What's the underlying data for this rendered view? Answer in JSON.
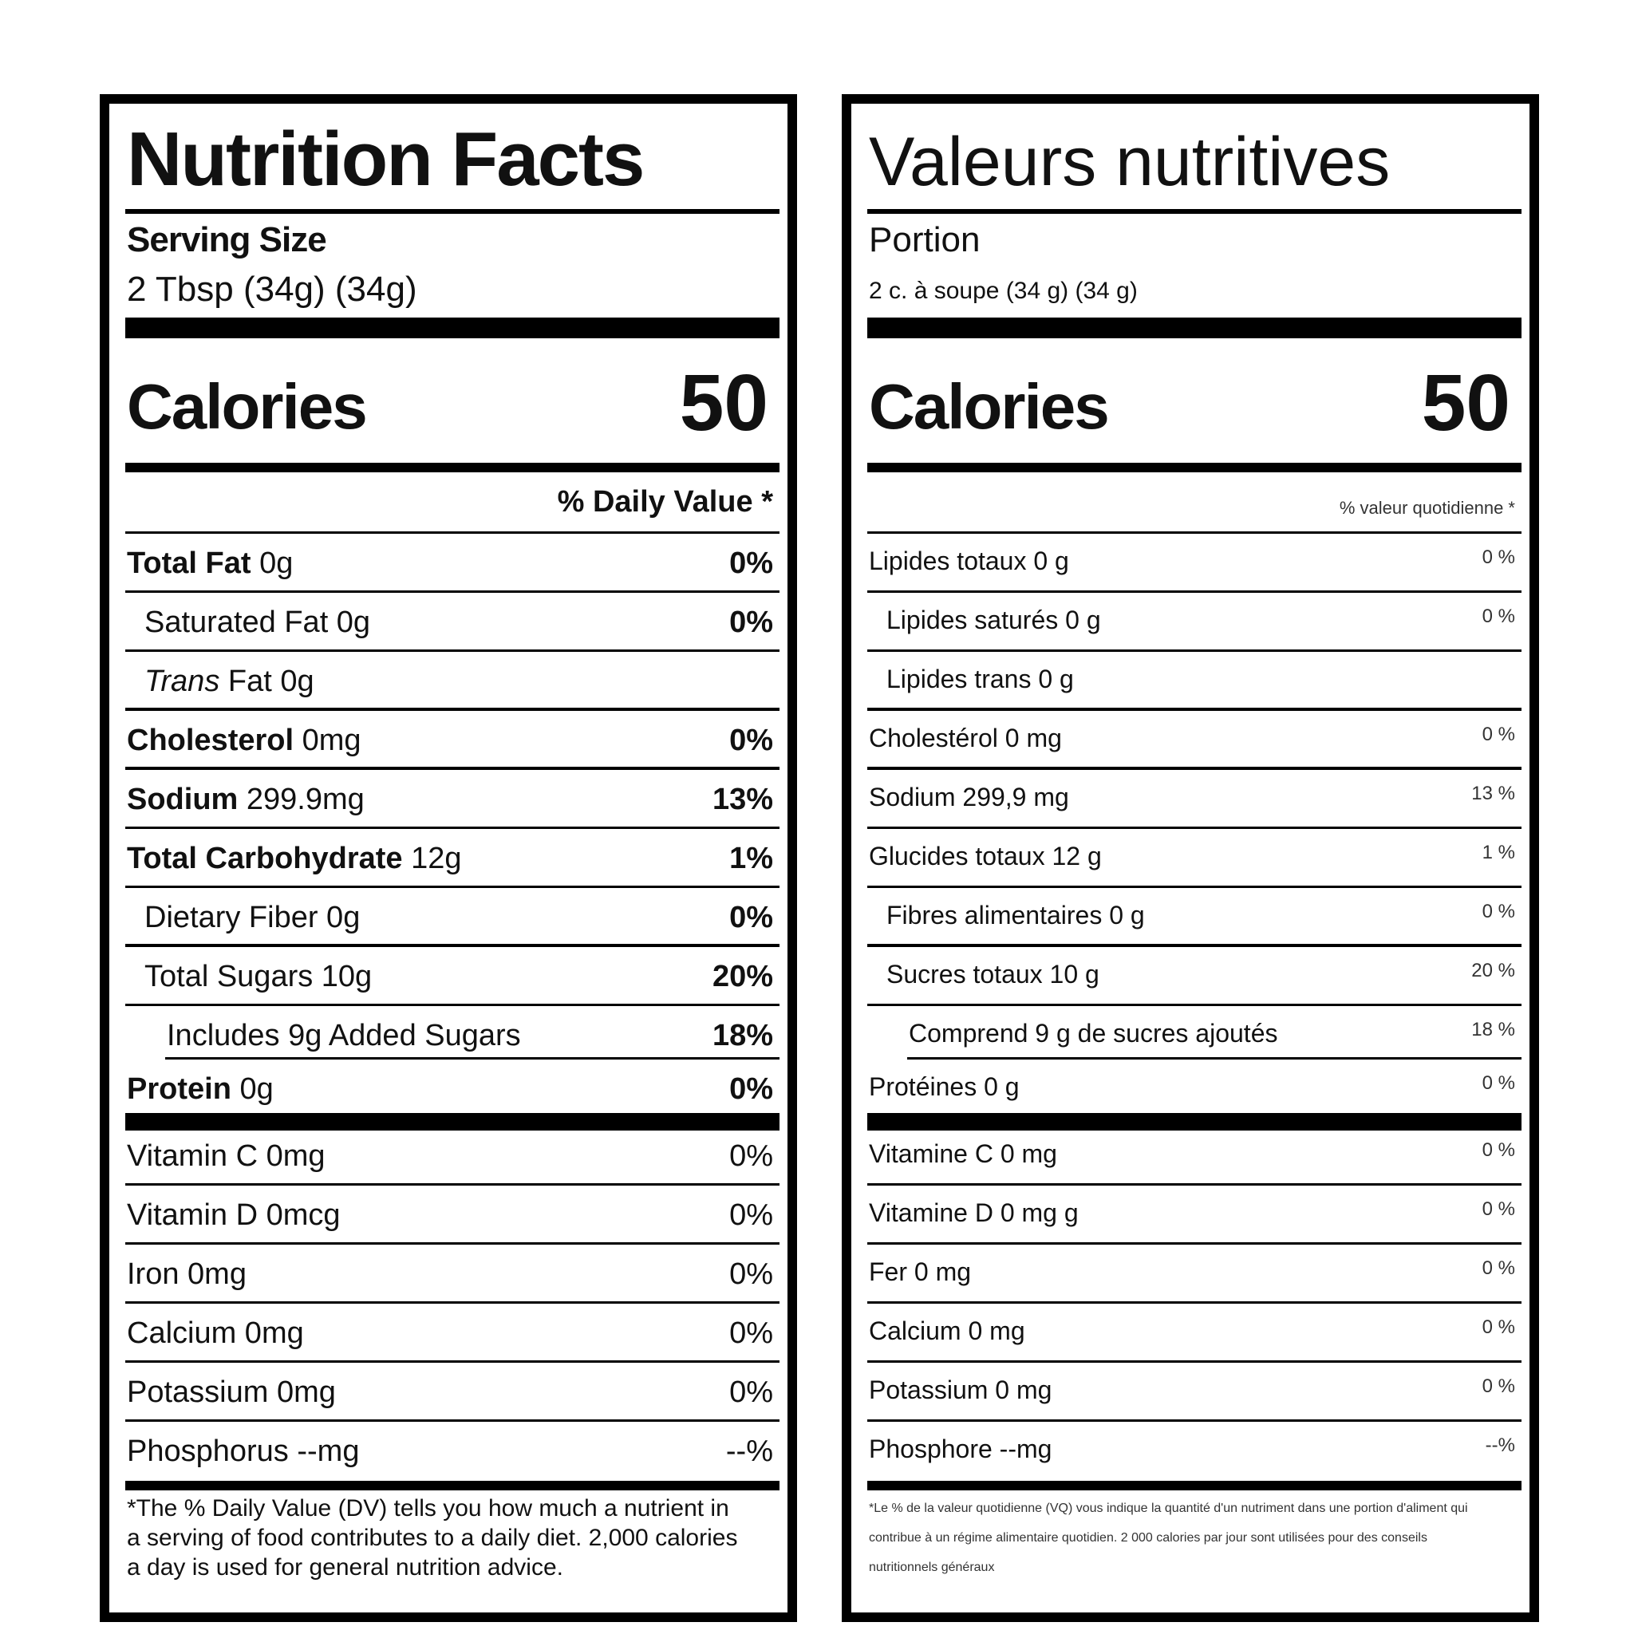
{
  "english": {
    "title": "Nutrition Facts",
    "serving_label": "Serving Size",
    "serving_size": "2 Tbsp (34g) (34g)",
    "calories_label": "Calories",
    "calories_value": "50",
    "dv_header": "% Daily Value *",
    "rows": [
      {
        "bold": "Total Fat",
        "text": " 0g",
        "pct": "0%"
      },
      {
        "text": "Saturated Fat 0g",
        "pct": "0%"
      },
      {
        "italic": "Trans",
        "text": " Fat 0g",
        "pct": ""
      },
      {
        "bold": "Cholesterol",
        "text": " 0mg",
        "pct": "0%"
      },
      {
        "bold": "Sodium",
        "text": " 299.9mg",
        "pct": "13%"
      },
      {
        "bold": "Total Carbohydrate",
        "text": " 12g",
        "pct": "1%"
      },
      {
        "text": "Dietary Fiber 0g",
        "pct": "0%"
      },
      {
        "text": "Total Sugars 10g",
        "pct": "20%"
      },
      {
        "text": "Includes 9g Added Sugars",
        "pct": "18%"
      },
      {
        "bold": "Protein",
        "text": " 0g",
        "pct": "0%"
      },
      {
        "text": "Vitamin C 0mg",
        "pct": "0%"
      },
      {
        "text": "Vitamin D 0mcg",
        "pct": "0%"
      },
      {
        "text": "Iron 0mg",
        "pct": "0%"
      },
      {
        "text": "Calcium 0mg",
        "pct": "0%"
      },
      {
        "text": "Potassium 0mg",
        "pct": "0%"
      },
      {
        "text": "Phosphorus --mg",
        "pct": "--%"
      }
    ],
    "footnote": "*The % Daily Value (DV) tells you how much a nutrient in a serving of food contributes to a daily diet. 2,000 calories a day is used for general nutrition advice."
  },
  "french": {
    "title": "Valeurs nutritives",
    "serving_label": "Portion",
    "serving_size": "2 c. à soupe (34 g) (34 g)",
    "calories_label": "Calories",
    "calories_value": "50",
    "dv_header": "% valeur quotidienne *",
    "rows": [
      {
        "text": "Lipides totaux 0 g",
        "pct": "0 %"
      },
      {
        "text": "Lipides saturés 0 g",
        "pct": "0 %"
      },
      {
        "text": "Lipides trans 0 g",
        "pct": ""
      },
      {
        "text": "Cholestérol 0 mg",
        "pct": "0 %"
      },
      {
        "text": "Sodium 299,9 mg",
        "pct": "13 %"
      },
      {
        "text": "Glucides totaux 12 g",
        "pct": "1 %"
      },
      {
        "text": "Fibres alimentaires 0 g",
        "pct": "0 %"
      },
      {
        "text": "Sucres totaux 10 g",
        "pct": "20 %"
      },
      {
        "text": "Comprend 9 g de sucres ajoutés",
        "pct": "18 %"
      },
      {
        "text": "Protéines 0 g",
        "pct": "0 %"
      },
      {
        "text": "Vitamine C 0 mg",
        "pct": "0 %"
      },
      {
        "text": "Vitamine D 0 mg g",
        "pct": "0 %"
      },
      {
        "text": "Fer 0 mg",
        "pct": "0 %"
      },
      {
        "text": "Calcium 0 mg",
        "pct": "0 %"
      },
      {
        "text": "Potassium 0 mg",
        "pct": "0 %"
      },
      {
        "text": "Phosphore --mg",
        "pct": "--%"
      }
    ],
    "footnote": "*Le % de la valeur quotidienne (VQ) vous indique la quantité d'un nutriment dans une portion d'aliment qui contribue à un régime alimentaire quotidien. 2 000 calories par jour sont utilisées pour des conseils nutritionnels généraux"
  }
}
